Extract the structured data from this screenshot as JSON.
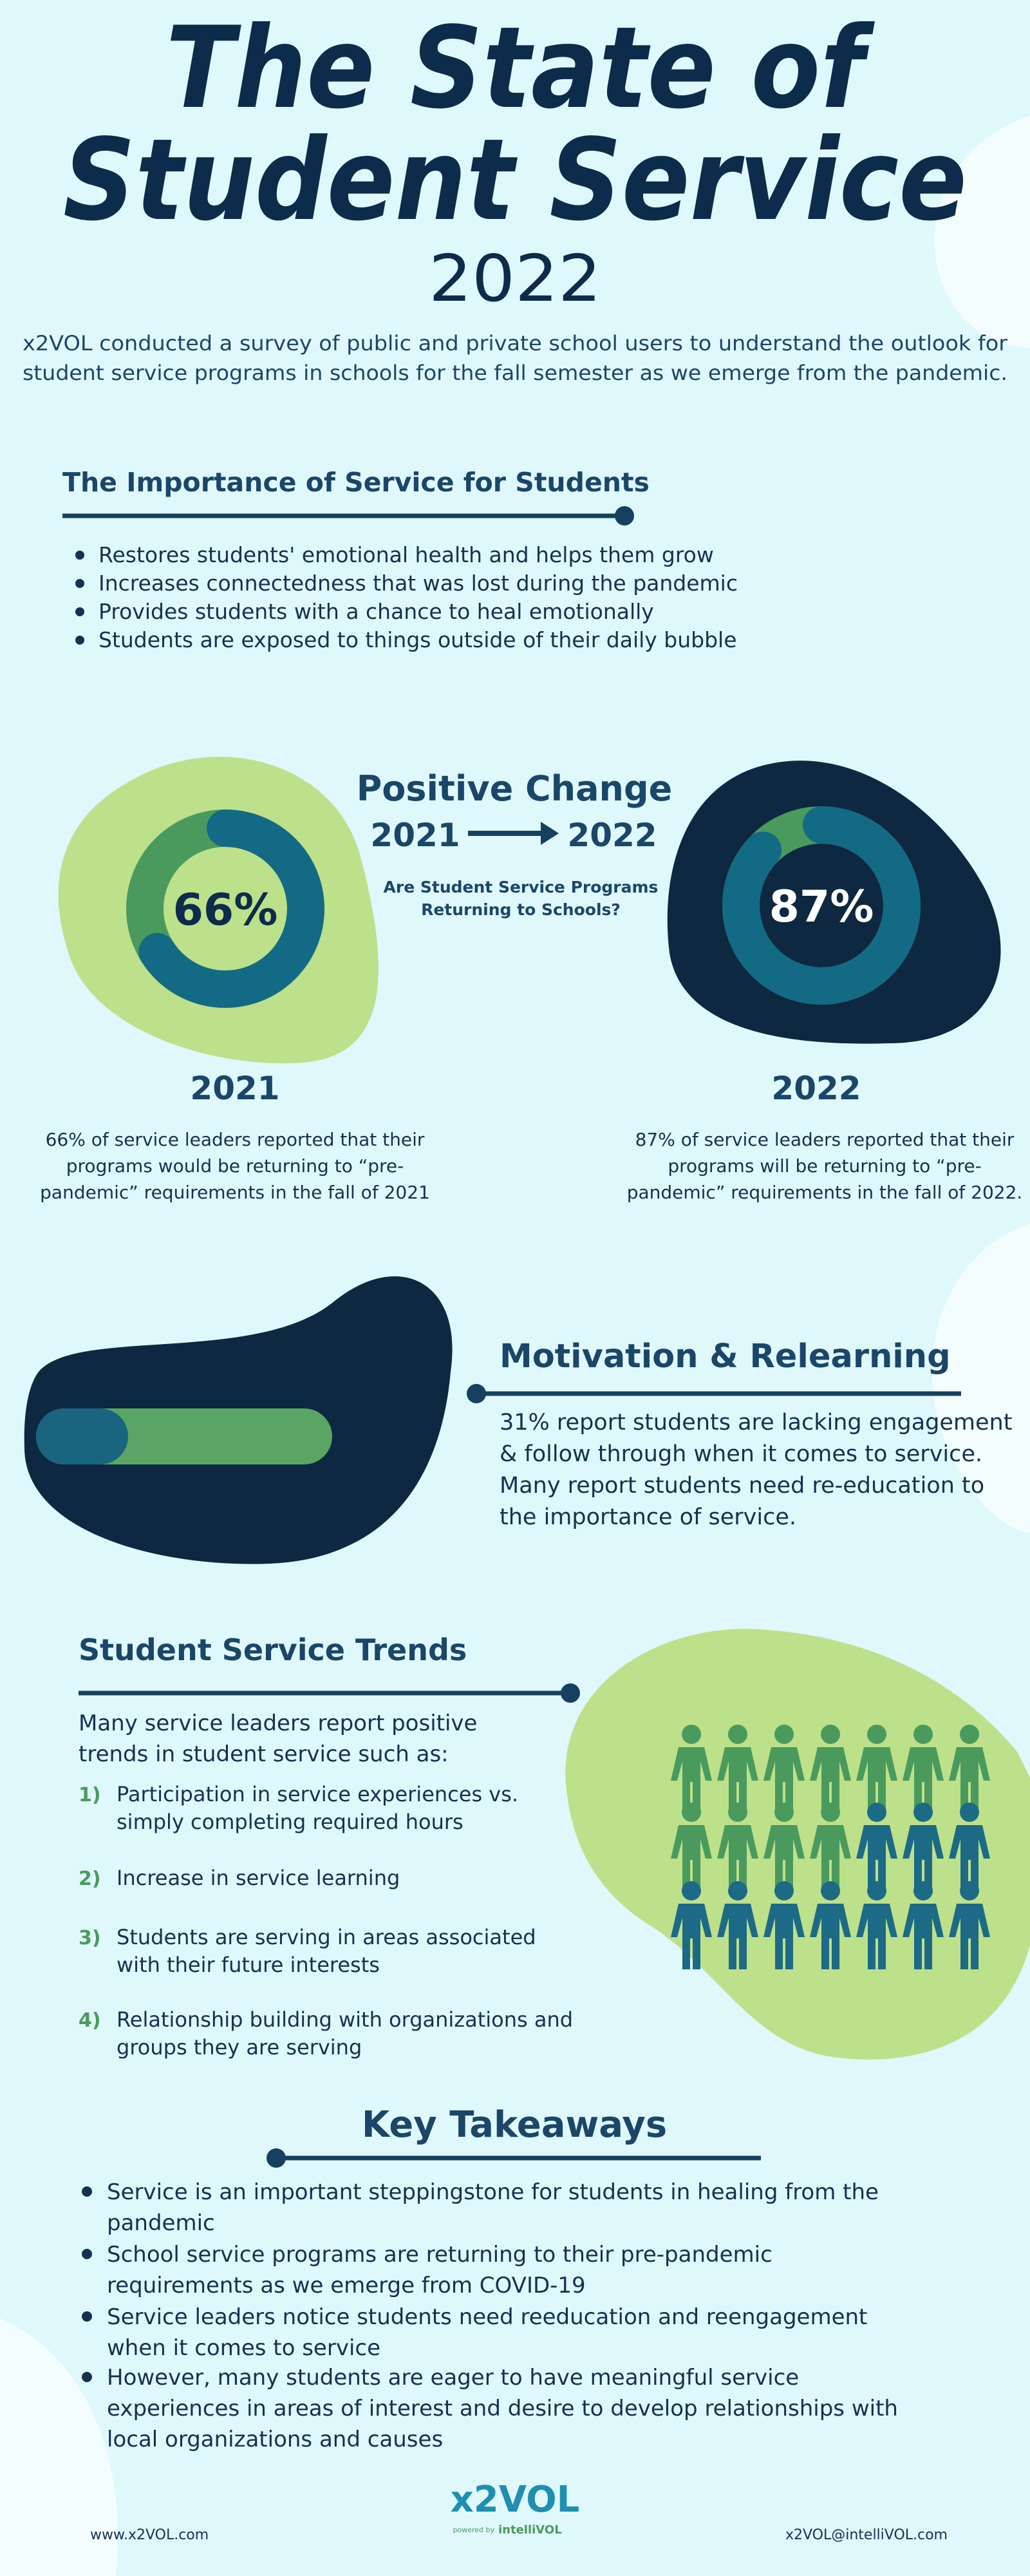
{
  "header": {
    "title_lines": [
      "The State of",
      "Student Service"
    ],
    "year": "2022",
    "intro_lines": [
      "x2VOL conducted a survey of public and private school users to understand the outlook for",
      "student service programs in schools for the fall semester as we emerge from the pandemic."
    ]
  },
  "importance": {
    "title": "The Importance of Service for Students",
    "bullets": [
      "Restores students' emotional health and helps them grow",
      "Increases connectedness that was lost during the pandemic",
      "Provides students with a chance to heal emotionally",
      "Students are exposed to things outside of their daily bubble"
    ]
  },
  "positive_change": {
    "title": "Positive Change",
    "from": "2021",
    "to": "2022",
    "question_lines": [
      "Are Student Service Programs",
      "Returning to Schools?"
    ],
    "donuts": [
      {
        "value": 66,
        "label": "66%",
        "year": "2021",
        "description_lines": [
          "66% of service leaders reported that their",
          "programs would be returning to “pre-",
          "pandemic” requirements in the fall of 2021"
        ]
      },
      {
        "value": 87,
        "label": "87%",
        "year": "2022",
        "description_lines": [
          "87% of service leaders reported that their",
          "programs will be returning to  “pre-",
          "pandemic” requirements in the fall of 2022."
        ]
      }
    ]
  },
  "motivation": {
    "title": "Motivation & Relearning",
    "text_lines": [
      "31% report students are lacking engagement",
      "& follow through when it comes to service.",
      "Many report students need re-education to",
      "the importance of service."
    ]
  },
  "trends": {
    "title": "Student Service Trends",
    "intro_lines": [
      "Many service leaders report positive",
      "trends in student service such as:"
    ],
    "items": [
      {
        "number": "1)",
        "lines": [
          "Participation in service experiences vs.",
          "simply completing required hours"
        ]
      },
      {
        "number": "2)",
        "lines": [
          "Increase in service learning"
        ]
      },
      {
        "number": "3)",
        "lines": [
          "Students are serving in areas associated",
          "with their future interests"
        ]
      },
      {
        "number": "4)",
        "lines": [
          "Relationship building with organizations and",
          "groups they are serving"
        ]
      }
    ]
  },
  "takeaways": {
    "title": "Key Takeaways",
    "bullets": [
      [
        "Service is an important steppingstone for students in healing from the",
        "pandemic"
      ],
      [
        "School service programs are returning to their pre-pandemic",
        "requirements as we emerge from COVID-19"
      ],
      [
        "Service leaders notice students need reeducation and reengagement",
        "when it comes to service"
      ],
      [
        "However, many students are eager to have meaningful service",
        "experiences in areas of interest and desire to develop relationships with",
        "local organizations and causes"
      ]
    ]
  },
  "footer": {
    "website": "www.x2VOL.com",
    "logo": "x2VOL",
    "logo_tagline": "powered by",
    "logo_brand": "intelliVOL",
    "email": "x2VOL@intelliVOL.com"
  }
}
